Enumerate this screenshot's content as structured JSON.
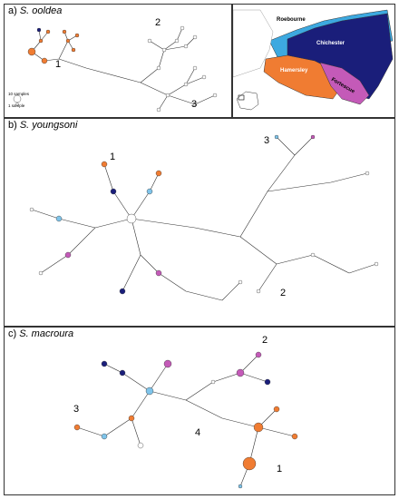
{
  "panels": [
    {
      "letter": "a)",
      "species": "S. ooldea",
      "clusters": [
        "1",
        "2",
        "3"
      ]
    },
    {
      "letter": "b)",
      "species": "S. youngsoni",
      "clusters": [
        "1",
        "2",
        "3"
      ]
    },
    {
      "letter": "c)",
      "species": "S. macroura",
      "clusters": [
        "1",
        "2",
        "3",
        "4"
      ]
    }
  ],
  "legend": {
    "large": "10 samples",
    "small": "1 sample"
  },
  "map": {
    "regions": [
      "Roebourne",
      "Chichester",
      "Hamersley",
      "Fortescue"
    ],
    "colors": {
      "Roebourne": "#3da9e0",
      "Chichester": "#1a1e7a",
      "Hamersley": "#f07c32",
      "Fortescue": "#c45ab8"
    }
  },
  "node_colors": {
    "roebourne": "#7fc4ea",
    "chichester": "#1a1e7a",
    "hamersley": "#f07c32",
    "fortescue": "#c45ab8",
    "unsampled": "#ffffff"
  }
}
